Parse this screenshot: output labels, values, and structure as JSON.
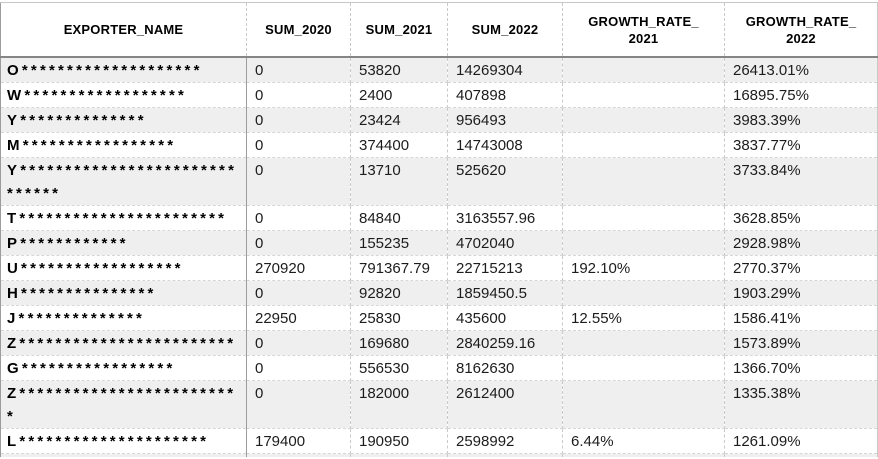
{
  "colors": {
    "stripe_row": "#efefef",
    "header_underline": "#858585",
    "grid_line_dashed": "#c9c9c9",
    "name_column_divider": "#9c9c9c",
    "header_text": "#000000",
    "cell_text": "#1c1c1c"
  },
  "table": {
    "header_labels": [
      "EXPORTER_NAME",
      "SUM_2020",
      "SUM_2021",
      "SUM_2022",
      "GROWTH_RATE_\n2021",
      "GROWTH_RATE_\n2022"
    ]
  },
  "chart_data": {
    "type": "table",
    "columns": [
      "EXPORTER_NAME",
      "SUM_2020",
      "SUM_2021",
      "SUM_2022",
      "GROWTH_RATE_2021",
      "GROWTH_RATE_2022"
    ],
    "rows": [
      {
        "exporter_name": "O********************",
        "sum_2020": "0",
        "sum_2021": "53820",
        "sum_2022": "14269304",
        "growth_rate_2021": "",
        "growth_rate_2022": "26413.01%"
      },
      {
        "exporter_name": "W******************",
        "sum_2020": "0",
        "sum_2021": "2400",
        "sum_2022": "407898",
        "growth_rate_2021": "",
        "growth_rate_2022": "16895.75%"
      },
      {
        "exporter_name": "Y**************",
        "sum_2020": "0",
        "sum_2021": "23424",
        "sum_2022": "956493",
        "growth_rate_2021": "",
        "growth_rate_2022": "3983.39%"
      },
      {
        "exporter_name": "M*****************",
        "sum_2020": "0",
        "sum_2021": "374400",
        "sum_2022": "14743008",
        "growth_rate_2021": "",
        "growth_rate_2022": "3837.77%"
      },
      {
        "exporter_name": "Y******************************",
        "sum_2020": "0",
        "sum_2021": "13710",
        "sum_2022": "525620",
        "growth_rate_2021": "",
        "growth_rate_2022": "3733.84%"
      },
      {
        "exporter_name": "T***********************",
        "sum_2020": "0",
        "sum_2021": "84840",
        "sum_2022": "3163557.96",
        "growth_rate_2021": "",
        "growth_rate_2022": "3628.85%"
      },
      {
        "exporter_name": "P************",
        "sum_2020": "0",
        "sum_2021": "155235",
        "sum_2022": "4702040",
        "growth_rate_2021": "",
        "growth_rate_2022": "2928.98%"
      },
      {
        "exporter_name": "U******************",
        "sum_2020": "270920",
        "sum_2021": "791367.79",
        "sum_2022": "22715213",
        "growth_rate_2021": "192.10%",
        "growth_rate_2022": "2770.37%"
      },
      {
        "exporter_name": "H***************",
        "sum_2020": "0",
        "sum_2021": "92820",
        "sum_2022": "1859450.5",
        "growth_rate_2021": "",
        "growth_rate_2022": "1903.29%"
      },
      {
        "exporter_name": "J**************",
        "sum_2020": "22950",
        "sum_2021": "25830",
        "sum_2022": "435600",
        "growth_rate_2021": "12.55%",
        "growth_rate_2022": "1586.41%"
      },
      {
        "exporter_name": "Z************************",
        "sum_2020": "0",
        "sum_2021": "169680",
        "sum_2022": "2840259.16",
        "growth_rate_2021": "",
        "growth_rate_2022": "1573.89%"
      },
      {
        "exporter_name": "G*****************",
        "sum_2020": "0",
        "sum_2021": "556530",
        "sum_2022": "8162630",
        "growth_rate_2021": "",
        "growth_rate_2022": "1366.70%"
      },
      {
        "exporter_name": "Z*************************",
        "sum_2020": "0",
        "sum_2021": "182000",
        "sum_2022": "2612400",
        "growth_rate_2021": "",
        "growth_rate_2022": "1335.38%"
      },
      {
        "exporter_name": "L*********************",
        "sum_2020": "179400",
        "sum_2021": "190950",
        "sum_2022": "2598992",
        "growth_rate_2021": "6.44%",
        "growth_rate_2022": "1261.09%"
      }
    ]
  }
}
